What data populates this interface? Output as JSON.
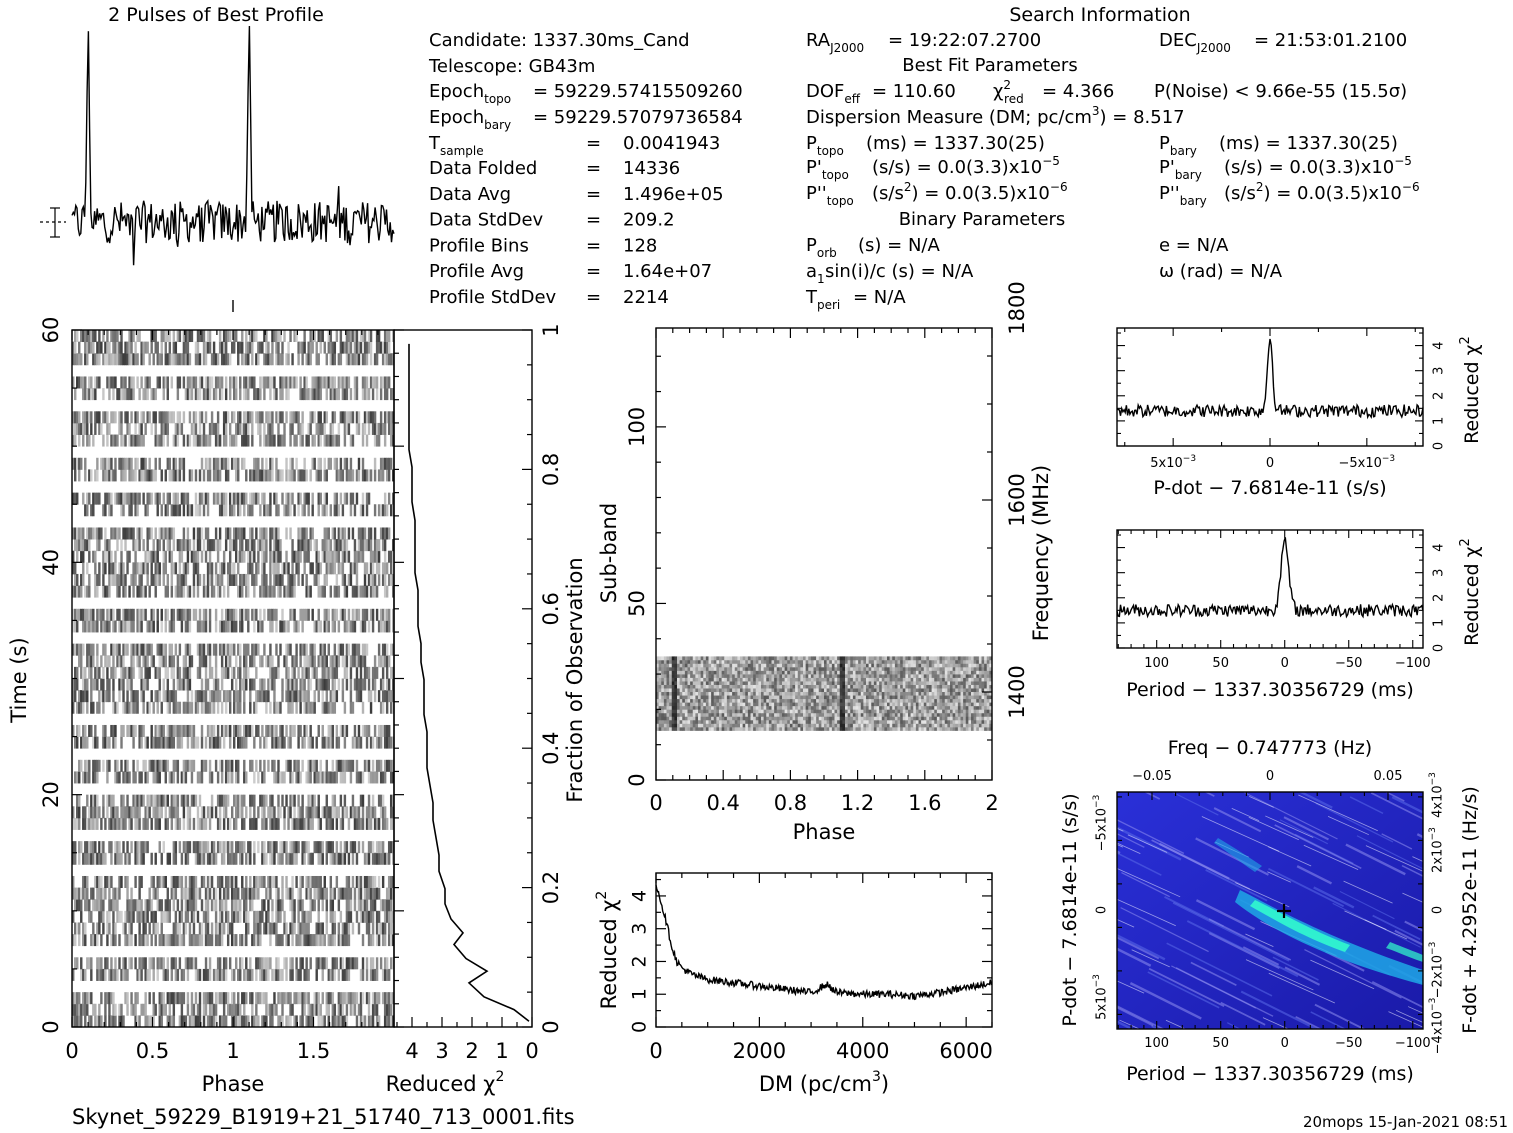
{
  "profile_title": "2 Pulses of Best Profile",
  "search_title": "Search Information",
  "filename": "Skynet_59229_B1919+21_51740_713_0001.fits",
  "footer_stamp": "20mops 15-Jan-2021 08:51",
  "candidate": {
    "candidate": "Candidate:  1337.30ms_Cand",
    "telescope": "Telescope:  GB43m",
    "epoch_topo_value": "= 59229.57415509260",
    "epoch_bary_value": "= 59229.57079736584",
    "rows": [
      {
        "label": "Data Folded",
        "value": "14336"
      },
      {
        "label": "Data Avg",
        "value": "1.496e+05"
      },
      {
        "label": "Data StdDev",
        "value": "209.2"
      },
      {
        "label": "Profile Bins",
        "value": "128"
      },
      {
        "label": "Profile Avg",
        "value": "1.64e+07"
      },
      {
        "label": "Profile StdDev",
        "value": "2214"
      }
    ],
    "t_sample_value": "0.0041943"
  },
  "search": {
    "ra": "= 19:22:07.2700",
    "dec": "= 21:53:01.2100",
    "best_fit_header": "Best Fit Parameters",
    "dof": "= 110.60",
    "chi2_value": "= 4.366",
    "p_noise": "P(Noise) < 9.66e-55   (15.5σ)",
    "dm": "Dispersion Measure (DM; pc/cm",
    "dm_value": ") = 8.517",
    "p_topo": "(ms)  =   1337.30(25)",
    "p_bary": "(ms)  =   1337.30(25)",
    "pd_topo": "(s/s) = 0.0(3.3)x10",
    "pd_bary": "(s/s) = 0.0(3.3)x10",
    "pd_exp": "−5",
    "pdd_topo": ") = 0.0(3.5)x10",
    "pdd_bary": ") = 0.0(3.5)x10",
    "pdd_exp": "−6",
    "binary_header": "Binary Parameters",
    "porb": "(s) = N/A",
    "e": "e = N/A",
    "asini": "sin(i)/c (s) = N/A",
    "omega": "ω (rad) = N/A",
    "tperi": "= N/A"
  },
  "colors": {
    "ink": "#000000",
    "pdot_map_low": "#1a1acc",
    "pdot_map_mid": "#1fa8e6",
    "pdot_map_high": "#33ffcc"
  },
  "chart_data": [
    {
      "id": "profile",
      "type": "line",
      "title": "2 Pulses of Best Profile",
      "x": {
        "range": [
          0,
          2
        ],
        "label": ""
      },
      "peaks": [
        {
          "phase": 0.1,
          "height": 1.0
        },
        {
          "phase": 1.1,
          "height": 1.0
        }
      ],
      "noise_level": 0.12
    },
    {
      "id": "time_phase",
      "type": "heatmap",
      "xlabel": "Phase",
      "ylabel": "Time (s)",
      "xticks": [
        "0",
        "0.5",
        "1",
        "1.5"
      ],
      "yticks": [
        "0",
        "20",
        "40",
        "60"
      ],
      "xlim": [
        0,
        2
      ],
      "ylim": [
        0,
        60
      ],
      "gap_times": [
        3.3,
        6.9,
        10.0,
        13.4,
        16.6,
        20.1,
        23.4,
        26.9,
        30.0,
        33.6,
        36.9,
        40.0,
        43.5,
        46.8,
        49.9,
        53.4,
        56.8
      ]
    },
    {
      "id": "time_chi2",
      "type": "line",
      "xlabel": "Reduced χ",
      "xticks": [
        "4",
        "3",
        "2",
        "1",
        "0"
      ],
      "right_ticks": [
        "0",
        "0.2",
        "0.4",
        "0.6",
        "0.8",
        "1"
      ],
      "right_label": "Fraction of Observation",
      "xlim": [
        4.6,
        0
      ],
      "ylim": [
        0,
        60
      ],
      "points": [
        [
          0.1,
          0.5
        ],
        [
          0.6,
          1.5
        ],
        [
          1.6,
          2.6
        ],
        [
          2.1,
          3.8
        ],
        [
          1.5,
          4.8
        ],
        [
          2.2,
          5.9
        ],
        [
          2.6,
          7.1
        ],
        [
          2.3,
          8.1
        ],
        [
          2.7,
          9.3
        ],
        [
          2.9,
          10.6
        ],
        [
          2.9,
          11.9
        ],
        [
          3.1,
          13.4
        ],
        [
          3.1,
          14.8
        ],
        [
          3.2,
          16.3
        ],
        [
          3.3,
          17.8
        ],
        [
          3.3,
          19.3
        ],
        [
          3.4,
          20.8
        ],
        [
          3.5,
          22.3
        ],
        [
          3.5,
          23.9
        ],
        [
          3.5,
          25.4
        ],
        [
          3.6,
          26.9
        ],
        [
          3.6,
          28.4
        ],
        [
          3.6,
          29.9
        ],
        [
          3.7,
          31.4
        ],
        [
          3.7,
          33.0
        ],
        [
          3.8,
          34.5
        ],
        [
          3.8,
          36.0
        ],
        [
          3.8,
          37.6
        ],
        [
          3.9,
          39.1
        ],
        [
          3.9,
          40.6
        ],
        [
          3.9,
          42.1
        ],
        [
          3.9,
          43.6
        ],
        [
          4.0,
          45.2
        ],
        [
          4.0,
          46.7
        ],
        [
          4.0,
          48.2
        ],
        [
          4.1,
          49.7
        ],
        [
          4.1,
          51.3
        ],
        [
          4.1,
          52.8
        ],
        [
          4.1,
          54.3
        ],
        [
          4.1,
          55.8
        ],
        [
          4.1,
          57.3
        ],
        [
          4.1,
          58.8
        ]
      ]
    },
    {
      "id": "subband",
      "type": "heatmap",
      "xlabel": "Phase",
      "ylabel": "Sub-band",
      "right_label": "Frequency (MHz)",
      "xticks": [
        "0",
        "0.4",
        "0.8",
        "1.2",
        "1.6",
        "2"
      ],
      "yticks": [
        "0",
        "50",
        "100"
      ],
      "right_ticks": [
        "1400",
        "1600",
        "1800"
      ],
      "xlim": [
        0,
        2
      ],
      "ylim": [
        0,
        128
      ],
      "filled_bands": [
        14,
        35
      ],
      "pulse_phases": [
        0.11,
        1.11
      ]
    },
    {
      "id": "dm_chi2",
      "type": "line",
      "xlabel": "DM (pc/cm",
      "ylabel": "Reduced χ",
      "xticks": [
        "0",
        "2000",
        "4000",
        "6000"
      ],
      "yticks": [
        "0",
        "1",
        "2",
        "3",
        "4"
      ],
      "xlim": [
        0,
        6500
      ],
      "ylim": [
        0,
        4.7
      ],
      "points": [
        [
          0,
          4.4
        ],
        [
          100,
          3.8
        ],
        [
          200,
          3.2
        ],
        [
          300,
          2.5
        ],
        [
          400,
          2.0
        ],
        [
          500,
          1.8
        ],
        [
          700,
          1.6
        ],
        [
          1000,
          1.45
        ],
        [
          1500,
          1.35
        ],
        [
          2000,
          1.25
        ],
        [
          2500,
          1.15
        ],
        [
          3000,
          1.05
        ],
        [
          3300,
          1.3
        ],
        [
          3500,
          1.05
        ],
        [
          4000,
          1.0
        ],
        [
          4500,
          1.0
        ],
        [
          5000,
          0.95
        ],
        [
          5500,
          1.05
        ],
        [
          6000,
          1.2
        ],
        [
          6500,
          1.35
        ]
      ]
    },
    {
      "id": "pdot_chi2",
      "type": "line",
      "xlabel": "P-dot − 7.6814e-11 (s/s)",
      "ylabel": "Reduced χ",
      "xticks": [
        "5x10",
        "0",
        "−5x10"
      ],
      "x_tick_exp": "−3",
      "yticks": [
        "0",
        "1",
        "2",
        "3",
        "4"
      ],
      "xlim": [
        0.0079,
        -0.0079
      ],
      "ylim": [
        0,
        4.7
      ],
      "peak": {
        "x": 0,
        "y": 4.3
      },
      "baseline": 1.4
    },
    {
      "id": "period_chi2",
      "type": "line",
      "xlabel": "Period − 1337.30356729 (ms)",
      "ylabel": "Reduced χ",
      "xticks": [
        "100",
        "50",
        "0",
        "−50",
        "−100"
      ],
      "yticks": [
        "0",
        "1",
        "2",
        "3",
        "4"
      ],
      "xlim": [
        131,
        -108
      ],
      "ylim": [
        0,
        4.7
      ],
      "peak": {
        "x": 0,
        "y": 4.2
      },
      "baseline": 1.5
    },
    {
      "id": "pp_dot",
      "type": "heatmap",
      "title": "Freq − 0.747773 (Hz)",
      "xlabel": "Period − 1337.30356729 (ms)",
      "ylabel": "P-dot − 7.6814e-11 (s/s)",
      "right_label": "F-dot + 4.2952e-11 (Hz/s)",
      "xticks": [
        "100",
        "50",
        "0",
        "−50",
        "−100"
      ],
      "top_ticks": [
        "−0.05",
        "0",
        "0.05"
      ],
      "yticks": [
        "5x10",
        "0",
        "−5x10"
      ],
      "right_ticks": [
        "−4x10",
        "−2x10",
        "0",
        "2x10",
        "4x10"
      ],
      "tick_exp": "−3",
      "xlim": [
        131,
        -108
      ],
      "best": {
        "x": 0,
        "y": 0
      }
    }
  ]
}
